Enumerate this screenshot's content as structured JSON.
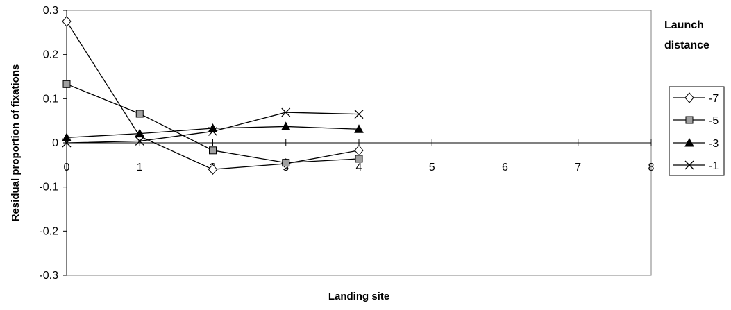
{
  "chart_data": {
    "type": "line",
    "title": "",
    "xlabel": "Landing site",
    "ylabel": "Residual proportion of fixations",
    "xlim": [
      0,
      8
    ],
    "ylim": [
      -0.3,
      0.3
    ],
    "xticks": [
      "0",
      "1",
      "2",
      "3",
      "4",
      "5",
      "6",
      "7",
      "8"
    ],
    "yticks": [
      "-0.3",
      "-0.2",
      "-0.1",
      "0",
      "0.1",
      "0.2",
      "0.3"
    ],
    "grid": false,
    "legend": {
      "title_lines": [
        "Launch",
        "distance"
      ],
      "position": "right"
    },
    "series": [
      {
        "name": "-7",
        "marker": "diamond-open",
        "x": [
          0,
          1,
          2,
          3,
          4
        ],
        "y": [
          0.275,
          0.015,
          -0.06,
          -0.047,
          -0.017
        ]
      },
      {
        "name": "-5",
        "marker": "square-gray",
        "x": [
          0,
          1,
          2,
          3,
          4
        ],
        "y": [
          0.133,
          0.066,
          -0.017,
          -0.045,
          -0.036
        ]
      },
      {
        "name": "-3",
        "marker": "triangle-filled",
        "x": [
          0,
          1,
          2,
          3,
          4
        ],
        "y": [
          0.012,
          0.021,
          0.033,
          0.037,
          0.031
        ]
      },
      {
        "name": "-1",
        "marker": "x-cross",
        "x": [
          0,
          1,
          2,
          3,
          4
        ],
        "y": [
          0.0,
          0.004,
          0.026,
          0.069,
          0.065
        ]
      }
    ]
  }
}
